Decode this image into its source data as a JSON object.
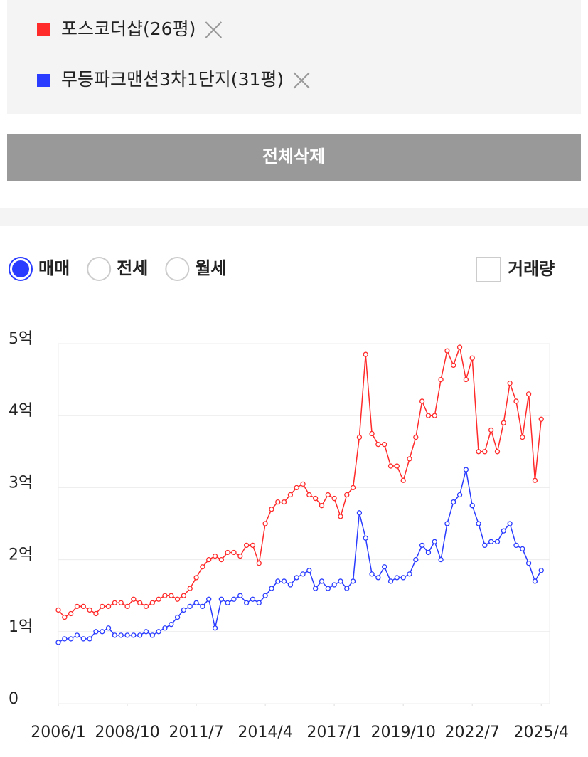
{
  "filters": {
    "clear_button": "전체삭제"
  },
  "options": {
    "radios": [
      "매매",
      "전세",
      "월세"
    ],
    "selected": 0,
    "checkbox": "거래량",
    "checked": false
  },
  "chart_data": {
    "type": "line",
    "x": [
      "2006/1",
      "2006/4",
      "2006/7",
      "2006/10",
      "2007/1",
      "2007/4",
      "2007/7",
      "2007/10",
      "2008/1",
      "2008/4",
      "2008/7",
      "2008/10",
      "2009/1",
      "2009/4",
      "2009/7",
      "2009/10",
      "2010/1",
      "2010/4",
      "2010/7",
      "2010/10",
      "2011/1",
      "2011/4",
      "2011/7",
      "2011/10",
      "2012/1",
      "2012/4",
      "2012/7",
      "2012/10",
      "2013/1",
      "2013/4",
      "2013/7",
      "2013/10",
      "2014/1",
      "2014/4",
      "2014/7",
      "2014/10",
      "2015/1",
      "2015/4",
      "2015/7",
      "2015/10",
      "2016/1",
      "2016/4",
      "2016/7",
      "2016/10",
      "2017/1",
      "2017/4",
      "2017/7",
      "2017/10",
      "2018/1",
      "2018/4",
      "2018/7",
      "2018/10",
      "2019/1",
      "2019/4",
      "2019/7",
      "2019/10",
      "2020/1",
      "2020/4",
      "2020/7",
      "2020/10",
      "2021/1",
      "2021/4",
      "2021/7",
      "2021/10",
      "2022/1",
      "2022/4",
      "2022/7",
      "2022/10",
      "2023/1",
      "2023/4",
      "2023/7",
      "2023/10",
      "2024/1",
      "2024/4",
      "2024/7",
      "2024/10",
      "2025/1",
      "2025/4"
    ],
    "series": [
      {
        "name": "포스코더샵(26평)",
        "color": "#ff2a2a",
        "values": [
          1.3,
          1.2,
          1.25,
          1.35,
          1.35,
          1.3,
          1.25,
          1.35,
          1.35,
          1.4,
          1.4,
          1.35,
          1.45,
          1.4,
          1.35,
          1.4,
          1.45,
          1.5,
          1.5,
          1.45,
          1.5,
          1.6,
          1.75,
          1.9,
          2.0,
          2.05,
          2.0,
          2.1,
          2.1,
          2.05,
          2.2,
          2.2,
          1.95,
          2.5,
          2.7,
          2.8,
          2.8,
          2.9,
          3.0,
          3.05,
          2.9,
          2.85,
          2.75,
          2.9,
          2.85,
          2.6,
          2.9,
          3.0,
          3.7,
          4.85,
          3.75,
          3.6,
          3.6,
          3.3,
          3.3,
          3.1,
          3.4,
          3.7,
          4.2,
          4.0,
          4.0,
          4.5,
          4.9,
          4.7,
          4.95,
          4.5,
          4.8,
          3.5,
          3.5,
          3.8,
          3.5,
          3.9,
          4.45,
          4.2,
          3.7,
          4.3,
          3.1,
          3.95
        ]
      },
      {
        "name": "무등파크맨션3차1단지(31평)",
        "color": "#2a3cff",
        "values": [
          0.85,
          0.9,
          0.9,
          0.95,
          0.9,
          0.9,
          1.0,
          1.0,
          1.05,
          0.95,
          0.95,
          0.95,
          0.95,
          0.95,
          1.0,
          0.95,
          1.0,
          1.05,
          1.1,
          1.2,
          1.3,
          1.35,
          1.4,
          1.35,
          1.45,
          1.05,
          1.45,
          1.4,
          1.45,
          1.5,
          1.4,
          1.45,
          1.4,
          1.5,
          1.6,
          1.7,
          1.7,
          1.65,
          1.75,
          1.8,
          1.85,
          1.6,
          1.7,
          1.6,
          1.65,
          1.7,
          1.6,
          1.7,
          2.65,
          2.3,
          1.8,
          1.75,
          1.9,
          1.7,
          1.75,
          1.75,
          1.8,
          2.0,
          2.2,
          2.1,
          2.25,
          2.0,
          2.5,
          2.8,
          2.9,
          3.25,
          2.75,
          2.5,
          2.2,
          2.25,
          2.25,
          2.4,
          2.5,
          2.2,
          2.15,
          1.95,
          1.7,
          1.85
        ]
      }
    ],
    "xlim": [
      "2006/1",
      "2025/8"
    ],
    "xticks": [
      "2006/1",
      "2008/10",
      "2011/7",
      "2014/4",
      "2017/1",
      "2019/10",
      "2022/7",
      "2025/4"
    ],
    "ylim": [
      0,
      5
    ],
    "yticks": [
      0,
      {
        "value": 1,
        "label": "1억"
      },
      {
        "value": 2,
        "label": "2억"
      },
      {
        "value": 3,
        "label": "3억"
      },
      {
        "value": 4,
        "label": "4억"
      },
      {
        "value": 5,
        "label": "5억"
      }
    ],
    "grid": true
  }
}
